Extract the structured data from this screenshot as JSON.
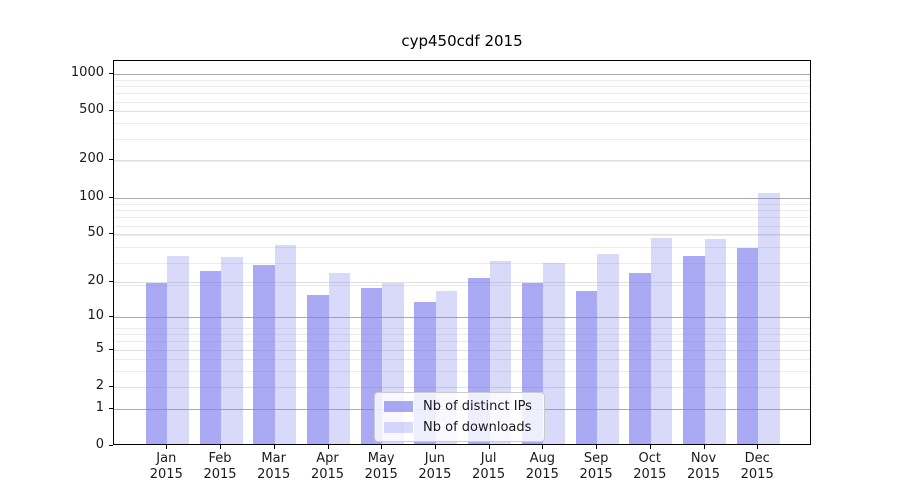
{
  "chart_data": {
    "type": "bar",
    "title": "cyp450cdf 2015",
    "categories": [
      "Jan",
      "Feb",
      "Mar",
      "Apr",
      "May",
      "Jun",
      "Jul",
      "Aug",
      "Sep",
      "Oct",
      "Nov",
      "Dec"
    ],
    "category_year": "2015",
    "series": [
      {
        "name": "Nb of distinct IPs",
        "color": "rgba(123,123,238,0.65)",
        "values": [
          19,
          24,
          27,
          15,
          17,
          13,
          21,
          19,
          16,
          23,
          32,
          37
        ]
      },
      {
        "name": "Nb of downloads",
        "color": "rgba(123,123,238,0.29)",
        "values": [
          32,
          31,
          39,
          23,
          19,
          16,
          29,
          28,
          33,
          45,
          44,
          105
        ]
      }
    ],
    "y_axis": {
      "scale": "log10(value+1)",
      "ticks": [
        0,
        1,
        2,
        5,
        10,
        20,
        50,
        100,
        200,
        500,
        1000
      ],
      "major_gridlines": [
        1,
        10,
        100,
        1000
      ],
      "ylim": [
        0,
        1275
      ]
    },
    "xlabel": "",
    "ylabel": "",
    "grid": true,
    "legend_position": "lower center-right inside plot"
  },
  "colors": {
    "bar_base": "#7b7bee",
    "grid_major": "#ababab",
    "grid_minor": "#ebebeb",
    "axis_spine": "#000000",
    "text": "#1a1a1a",
    "legend_border": "#cccccc",
    "legend_background": "rgba(255,255,255,0.8)"
  }
}
